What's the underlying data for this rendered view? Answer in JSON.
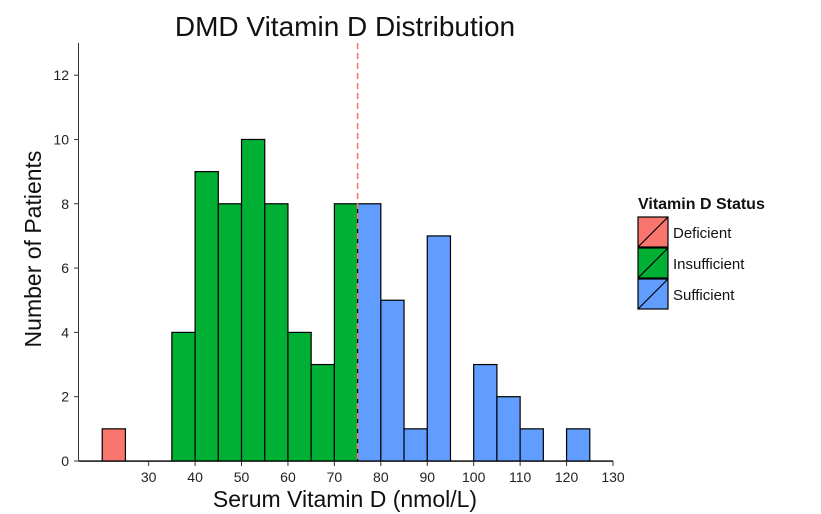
{
  "chart_data": {
    "type": "bar",
    "title": "DMD Vitamin D Distribution",
    "xlabel": "Serum Vitamin D (nmol/L)",
    "ylabel": "Number of Patients",
    "xlim": [
      15,
      130
    ],
    "ylim": [
      0,
      13
    ],
    "bin_width": 5,
    "x_ticks": [
      30,
      40,
      50,
      60,
      70,
      80,
      90,
      100,
      110,
      120,
      130
    ],
    "y_ticks": [
      0,
      2,
      4,
      6,
      8,
      10,
      12
    ],
    "threshold": 75,
    "grid": false,
    "legend_position": "right",
    "legend": {
      "title": "Vitamin D Status",
      "entries": [
        {
          "label": "Deficient",
          "color": "#f8766d"
        },
        {
          "label": "Insufficient",
          "color": "#00b034"
        },
        {
          "label": "Sufficient",
          "color": "#619cff"
        }
      ]
    },
    "bins": [
      {
        "start": 20,
        "end": 25,
        "count": 1,
        "status": "Deficient"
      },
      {
        "start": 35,
        "end": 40,
        "count": 4,
        "status": "Insufficient"
      },
      {
        "start": 40,
        "end": 45,
        "count": 9,
        "status": "Insufficient"
      },
      {
        "start": 45,
        "end": 50,
        "count": 8,
        "status": "Insufficient"
      },
      {
        "start": 50,
        "end": 55,
        "count": 10,
        "status": "Insufficient"
      },
      {
        "start": 55,
        "end": 60,
        "count": 8,
        "status": "Insufficient"
      },
      {
        "start": 60,
        "end": 65,
        "count": 4,
        "status": "Insufficient"
      },
      {
        "start": 65,
        "end": 70,
        "count": 3,
        "status": "Insufficient"
      },
      {
        "start": 70,
        "end": 75,
        "count": 8,
        "status": "Insufficient"
      },
      {
        "start": 75,
        "end": 80,
        "count": 8,
        "status": "Sufficient"
      },
      {
        "start": 80,
        "end": 85,
        "count": 5,
        "status": "Sufficient"
      },
      {
        "start": 85,
        "end": 90,
        "count": 1,
        "status": "Sufficient"
      },
      {
        "start": 90,
        "end": 95,
        "count": 7,
        "status": "Sufficient"
      },
      {
        "start": 100,
        "end": 105,
        "count": 3,
        "status": "Sufficient"
      },
      {
        "start": 105,
        "end": 110,
        "count": 2,
        "status": "Sufficient"
      },
      {
        "start": 110,
        "end": 115,
        "count": 1,
        "status": "Sufficient"
      },
      {
        "start": 120,
        "end": 125,
        "count": 1,
        "status": "Sufficient"
      }
    ],
    "zero_segments": [
      [
        15,
        20
      ],
      [
        25,
        35
      ],
      [
        95,
        100
      ],
      [
        115,
        120
      ],
      [
        125,
        130
      ]
    ]
  }
}
